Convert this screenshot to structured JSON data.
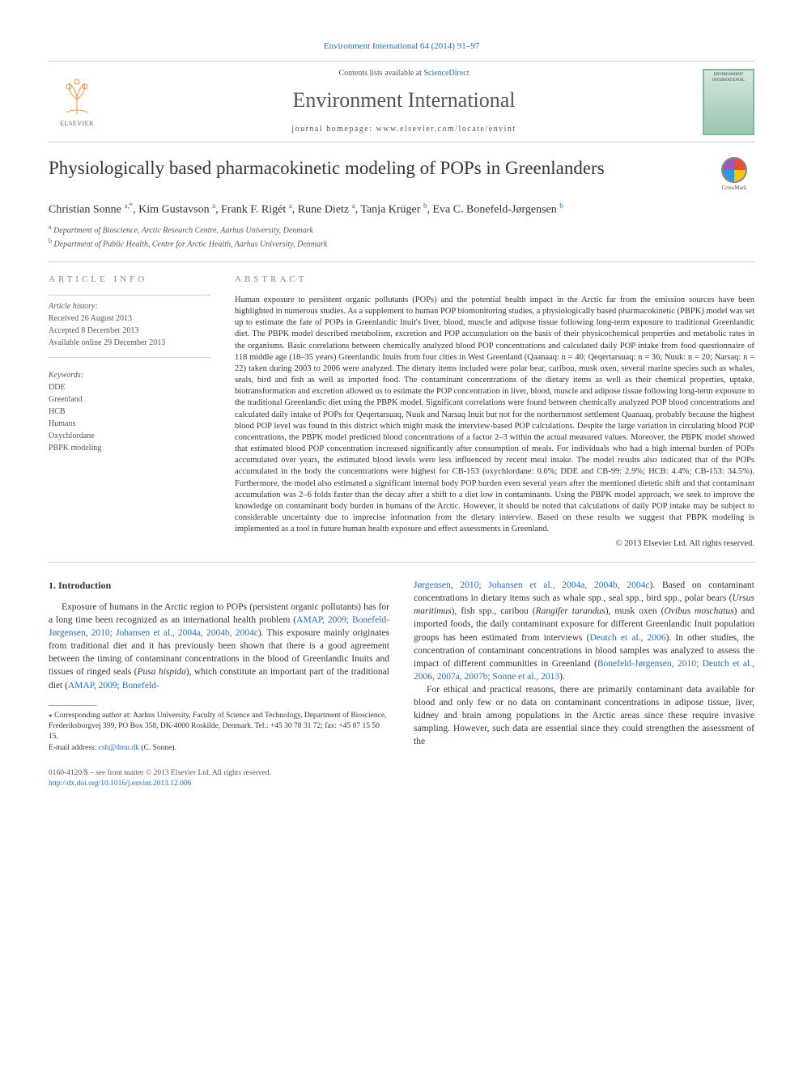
{
  "colors": {
    "link": "#2a6ebb",
    "text": "#333333",
    "muted": "#555555",
    "rule": "#cccccc",
    "cover_border": "#7fb89b"
  },
  "typography": {
    "body_fontsize": 13,
    "title_fontsize": 23,
    "journal_fontsize": 26,
    "abstract_fontsize": 10.5,
    "footnote_fontsize": 9.5
  },
  "topLink": {
    "prefix": "Environment International 64 (2014) 91–97"
  },
  "header": {
    "contents_prefix": "Contents lists available at ",
    "contents_link": "ScienceDirect",
    "journal": "Environment International",
    "homepage": "journal homepage: www.elsevier.com/locate/envint",
    "publisher_logo_label": "ELSEVIER",
    "cover_text": "ENVIRONMENT INTERNATIONAL"
  },
  "crossmark": {
    "label": "CrossMark"
  },
  "title": "Physiologically based pharmacokinetic modeling of POPs in Greenlanders",
  "authors_html": "Christian Sonne <sup>a,*</sup>, Kim Gustavson <sup>a</sup>, Frank F. Rigét <sup>a</sup>, Rune Dietz <sup>a</sup>, Tanja Krüger <sup>b</sup>, Eva C. Bonefeld-Jørgensen <sup>b</sup>",
  "affiliations": [
    {
      "sup": "a",
      "text": "Department of Bioscience, Arctic Research Centre, Aarhus University, Denmark"
    },
    {
      "sup": "b",
      "text": "Department of Public Health, Centre for Arctic Health, Aarhus University, Denmark"
    }
  ],
  "articleInfo": {
    "heading": "ARTICLE INFO",
    "history_label": "Article history:",
    "received": "Received 26 August 2013",
    "accepted": "Accepted 8 December 2013",
    "online": "Available online 29 December 2013",
    "keywords_label": "Keywords:",
    "keywords": [
      "DDE",
      "Greenland",
      "HCB",
      "Humans",
      "Oxychlordane",
      "PBPK modeling"
    ]
  },
  "abstract": {
    "heading": "ABSTRACT",
    "text": "Human exposure to persistent organic pollutants (POPs) and the potential health impact in the Arctic far from the emission sources have been highlighted in numerous studies. As a supplement to human POP biomonitoring studies, a physiologically based pharmacokinetic (PBPK) model was set up to estimate the fate of POPs in Greenlandic Inuit's liver, blood, muscle and adipose tissue following long-term exposure to traditional Greenlandic diet. The PBPK model described metabolism, excretion and POP accumulation on the basis of their physicochemical properties and metabolic rates in the organisms. Basic correlations between chemically analyzed blood POP concentrations and calculated daily POP intake from food questionnaire of 118 middle age (18–35 years) Greenlandic Inuits from four cities in West Greenland (Qaanaaq: n = 40; Qeqertarsuaq: n = 36; Nuuk: n = 20; Narsaq: n = 22) taken during 2003 to 2006 were analyzed. The dietary items included were polar bear, caribou, musk oxen, several marine species such as whales, seals, bird and fish as well as imported food. The contaminant concentrations of the dietary items as well as their chemical properties, uptake, biotransformation and excretion allowed us to estimate the POP concentration in liver, blood, muscle and adipose tissue following long-term exposure to the traditional Greenlandic diet using the PBPK model. Significant correlations were found between chemically analyzed POP blood concentrations and calculated daily intake of POPs for Qeqertarsuaq, Nuuk and Narsaq Inuit but not for the northernmost settlement Qaanaaq, probably because the highest blood POP level was found in this district which might mask the interview-based POP calculations. Despite the large variation in circulating blood POP concentrations, the PBPK model predicted blood concentrations of a factor 2–3 within the actual measured values. Moreover, the PBPK model showed that estimated blood POP concentration increased significantly after consumption of meals. For individuals who had a high internal burden of POPs accumulated over years, the estimated blood levels were less influenced by recent meal intake. The model results also indicated that of the POPs accumulated in the body the concentrations were highest for CB-153 (oxychlordane: 0.6%; DDE and CB-99: 2.9%; HCB: 4.4%; CB-153: 34.5%). Furthermore, the model also estimated a significant internal body POP burden even several years after the mentioned dietetic shift and that contaminant accumulation was 2–6 folds faster than the decay after a shift to a diet low in contaminants. Using the PBPK model approach, we seek to improve the knowledge on contaminant body burden in humans of the Arctic. However, it should be noted that calculations of daily POP intake may be subject to considerable uncertainty due to imprecise information from the dietary interview. Based on these results we suggest that PBPK modeling is implemented as a tool in future human health exposure and effect assessments in Greenland.",
    "copyright": "© 2013 Elsevier Ltd. All rights reserved."
  },
  "body": {
    "heading": "1. Introduction",
    "col1_para1_pre": "Exposure of humans in the Arctic region to POPs (persistent organic pollutants) has for a long time been recognized as an international health problem (",
    "col1_para1_link1": "AMAP, 2009; Bonefeld-Jørgensen, 2010; Johansen et al., 2004a, 2004b, 2004c",
    "col1_para1_mid": "). This exposure mainly originates from traditional diet and it has previously been shown that there is a good agreement between the timing of contaminant concentrations in the blood of Greenlandic Inuits and tissues of ringed seals (",
    "col1_para1_species": "Pusa hispida",
    "col1_para1_post": "), which constitute an important part of the traditional diet (",
    "col1_para1_link2": "AMAP, 2009; Bonefeld-",
    "col2_para1_link_cont": "Jørgensen, 2010; Johansen et al., 2004a, 2004b, 2004c",
    "col2_para1_mid1": "). Based on contaminant concentrations in dietary items such as whale spp., seal spp., bird spp., polar bears (",
    "col2_species1": "Ursus maritimus",
    "col2_para1_mid2": "), fish spp., caribou (",
    "col2_species2": "Rangifer tarandus",
    "col2_para1_mid3": "), musk oxen (",
    "col2_species3": "Ovibus moschatus",
    "col2_para1_mid4": ") and imported foods, the daily contaminant exposure for different Greenlandic Inuit population groups has been estimated from interviews (",
    "col2_link2": "Deutch et al., 2006",
    "col2_para1_mid5": "). In other studies, the concentration of contaminant concentrations in blood samples was analyzed to assess the impact of different communities in Greenland (",
    "col2_link3": "Bonefeld-Jørgensen, 2010; Deutch et al., 2006, 2007a, 2007b; Sonne et al., 2013",
    "col2_para1_end": ").",
    "col2_para2": "For ethical and practical reasons, there are primarily contaminant data available for blood and only few or no data on contaminant concentrations in adipose tissue, liver, kidney and brain among populations in the Arctic areas since these require invasive sampling. However, such data are essential since they could strengthen the assessment of the"
  },
  "footnotes": {
    "corr": "⁎ Corresponding author at: Aarhus University, Faculty of Science and Technology, Department of Bioscience, Frederiksborgvej 399, PO Box 358, DK-4000 Roskilde, Denmark. Tel.: +45 30 78 31 72; fax: +45 87 15 50 15.",
    "email_label": "E-mail address: ",
    "email": "csh@dmu.dk",
    "email_suffix": " (C. Sonne)."
  },
  "bottom": {
    "left_line1": "0160-4120/$ – see front matter © 2013 Elsevier Ltd. All rights reserved.",
    "doi": "http://dx.doi.org/10.1016/j.envint.2013.12.006"
  }
}
